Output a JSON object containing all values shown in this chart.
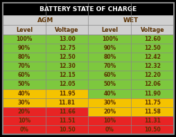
{
  "title": "BATTERY STATE OF CHARGE",
  "col_headers": [
    "Level",
    "Voltage",
    "Level",
    "Voltage"
  ],
  "group_headers": [
    "AGM",
    "WET"
  ],
  "rows": [
    [
      "100%",
      "13.00",
      "100%",
      "12.60"
    ],
    [
      "90%",
      "12.75",
      "90%",
      "12.50"
    ],
    [
      "80%",
      "12.50",
      "80%",
      "12.42"
    ],
    [
      "70%",
      "12.30",
      "70%",
      "12.32"
    ],
    [
      "60%",
      "12.15",
      "60%",
      "12.20"
    ],
    [
      "50%",
      "12.05",
      "50%",
      "12.06"
    ],
    [
      "40%",
      "11.95",
      "40%",
      "11.90"
    ],
    [
      "30%",
      "11.81",
      "30%",
      "11.75"
    ],
    [
      "20%",
      "11.66",
      "20%",
      "11.58"
    ],
    [
      "10%",
      "11.51",
      "10%",
      "11.31"
    ],
    [
      "0%",
      "10.50",
      "0%",
      "10.50"
    ]
  ],
  "agm_row_colors": [
    "#7dc83e",
    "#7dc83e",
    "#7dc83e",
    "#7dc83e",
    "#7dc83e",
    "#7dc83e",
    "#f5c300",
    "#f5c300",
    "#e82424",
    "#e82424",
    "#e82424"
  ],
  "wet_row_colors": [
    "#7dc83e",
    "#7dc83e",
    "#7dc83e",
    "#7dc83e",
    "#7dc83e",
    "#7dc83e",
    "#7dc83e",
    "#f5c300",
    "#f5c300",
    "#e82424",
    "#e82424"
  ],
  "header_bg": "#d0d0d0",
  "group_header_bg": "#d0d0d0",
  "title_bg": "#000000",
  "title_color": "#ffffff",
  "cell_text_color": "#5a3000",
  "header_text_color": "#5a3000",
  "background_color": "#000000",
  "grid_color": "#888888"
}
